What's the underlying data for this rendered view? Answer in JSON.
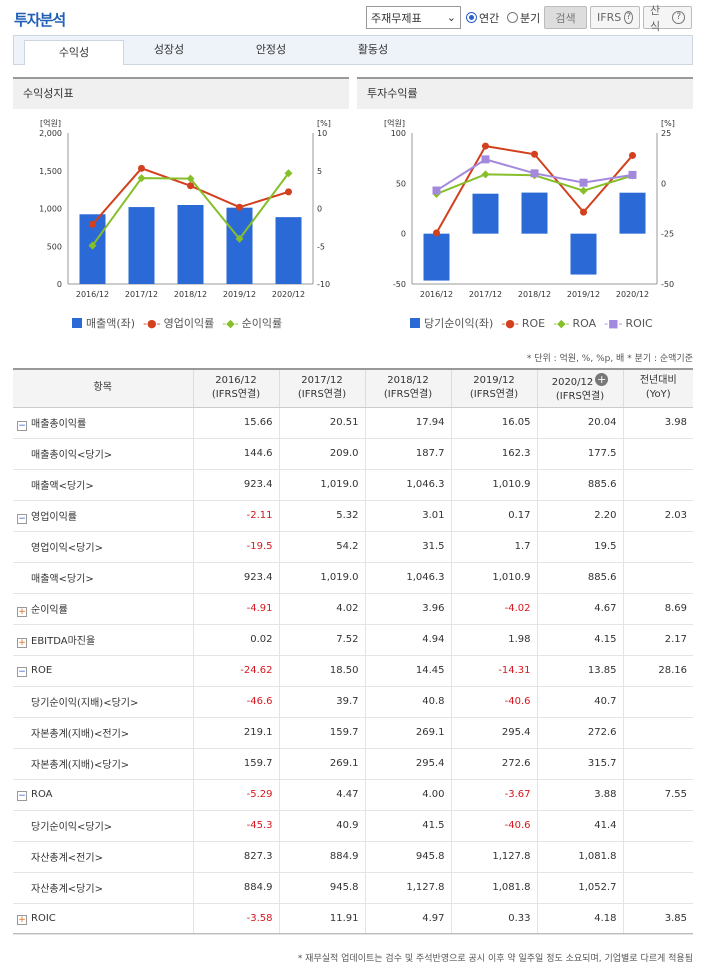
{
  "header": {
    "title": "투자분석",
    "select_value": "주재무제표",
    "radio_annual": "연간",
    "radio_quarter": "분기",
    "search_btn": "검색",
    "ifrs_btn": "IFRS",
    "formula_btn": "산식",
    "help": "?"
  },
  "tabs": [
    "수익성",
    "성장성",
    "안정성",
    "활동성"
  ],
  "panels": {
    "left": "수익성지표",
    "right": "투자수익률"
  },
  "chart_data": [
    {
      "type": "bar",
      "title": "수익성지표",
      "categories": [
        "2016/12",
        "2017/12",
        "2018/12",
        "2019/12",
        "2020/12"
      ],
      "y_left_unit": "[억원]",
      "y_right_unit": "[%]",
      "y_left_ticks": [
        "2,000",
        "1,500",
        "1,000",
        "500",
        "0"
      ],
      "y_right_ticks": [
        "10",
        "5",
        "0",
        "-5",
        "-10"
      ],
      "ylim_left": [
        0,
        2000
      ],
      "ylim_right": [
        -10,
        10
      ],
      "series": [
        {
          "name": "매출액(좌)",
          "kind": "bar",
          "axis": "left",
          "color": "#2b6ad6",
          "values": [
            923.4,
            1019.0,
            1046.3,
            1010.9,
            885.6
          ]
        },
        {
          "name": "영업이익률",
          "kind": "line",
          "axis": "right",
          "color": "#d2401e",
          "values": [
            -2.11,
            5.32,
            3.01,
            0.17,
            2.2
          ]
        },
        {
          "name": "순이익률",
          "kind": "line",
          "axis": "right",
          "color": "#86bf2a",
          "values": [
            -4.91,
            4.02,
            3.96,
            -4.02,
            4.67
          ]
        }
      ]
    },
    {
      "type": "bar",
      "title": "투자수익률",
      "categories": [
        "2016/12",
        "2017/12",
        "2018/12",
        "2019/12",
        "2020/12"
      ],
      "y_left_unit": "[억원]",
      "y_right_unit": "[%]",
      "y_left_ticks": [
        "100",
        "50",
        "0",
        "-50"
      ],
      "y_right_ticks": [
        "25",
        "0",
        "-25",
        "-50"
      ],
      "ylim_left": [
        -50,
        100
      ],
      "ylim_right": [
        -50,
        25
      ],
      "series": [
        {
          "name": "당기순이익(좌)",
          "kind": "bar",
          "axis": "left",
          "color": "#2b6ad6",
          "values": [
            -46.6,
            39.7,
            40.8,
            -40.6,
            40.7
          ]
        },
        {
          "name": "ROE",
          "kind": "line",
          "axis": "right",
          "color": "#d2401e",
          "values": [
            -24.62,
            18.5,
            14.45,
            -14.31,
            13.85
          ]
        },
        {
          "name": "ROA",
          "kind": "line",
          "axis": "right",
          "color": "#86bf2a",
          "values": [
            -5.29,
            4.47,
            4.0,
            -3.67,
            3.88
          ]
        },
        {
          "name": "ROIC",
          "kind": "line",
          "axis": "right",
          "color": "#a389dd",
          "values": [
            -3.58,
            11.91,
            4.97,
            0.33,
            4.18
          ]
        }
      ]
    }
  ],
  "unit_note": "* 단위 : 억원, %, %p, 배   * 분기 : 순액기준",
  "table": {
    "headers": [
      "항목",
      "2016/12\n(IFRS연결)",
      "2017/12\n(IFRS연결)",
      "2018/12\n(IFRS연결)",
      "2019/12\n(IFRS연결)",
      "2020/12\n(IFRS연결)",
      "전년대비\n(YoY)"
    ],
    "rows": [
      {
        "label": "매출총이익률",
        "toggle": "minus",
        "vals": [
          "15.66",
          "20.51",
          "17.94",
          "16.05",
          "20.04",
          "3.98"
        ]
      },
      {
        "label": "매출총이익<당기>",
        "sub": true,
        "vals": [
          "144.6",
          "209.0",
          "187.7",
          "162.3",
          "177.5",
          ""
        ]
      },
      {
        "label": "매출액<당기>",
        "sub": true,
        "vals": [
          "923.4",
          "1,019.0",
          "1,046.3",
          "1,010.9",
          "885.6",
          ""
        ]
      },
      {
        "label": "영업이익률",
        "toggle": "minus",
        "vals": [
          "-2.11",
          "5.32",
          "3.01",
          "0.17",
          "2.20",
          "2.03"
        ]
      },
      {
        "label": "영업이익<당기>",
        "sub": true,
        "vals": [
          "-19.5",
          "54.2",
          "31.5",
          "1.7",
          "19.5",
          ""
        ]
      },
      {
        "label": "매출액<당기>",
        "sub": true,
        "vals": [
          "923.4",
          "1,019.0",
          "1,046.3",
          "1,010.9",
          "885.6",
          ""
        ]
      },
      {
        "label": "순이익률",
        "toggle": "plus",
        "vals": [
          "-4.91",
          "4.02",
          "3.96",
          "-4.02",
          "4.67",
          "8.69"
        ]
      },
      {
        "label": "EBITDA마진율",
        "toggle": "plus",
        "vals": [
          "0.02",
          "7.52",
          "4.94",
          "1.98",
          "4.15",
          "2.17"
        ]
      },
      {
        "label": "ROE",
        "toggle": "minus",
        "vals": [
          "-24.62",
          "18.50",
          "14.45",
          "-14.31",
          "13.85",
          "28.16"
        ]
      },
      {
        "label": "당기순이익(지배)<당기>",
        "sub": true,
        "vals": [
          "-46.6",
          "39.7",
          "40.8",
          "-40.6",
          "40.7",
          ""
        ]
      },
      {
        "label": "자본총계(지배)<전기>",
        "sub": true,
        "vals": [
          "219.1",
          "159.7",
          "269.1",
          "295.4",
          "272.6",
          ""
        ]
      },
      {
        "label": "자본총계(지배)<당기>",
        "sub": true,
        "vals": [
          "159.7",
          "269.1",
          "295.4",
          "272.6",
          "315.7",
          ""
        ]
      },
      {
        "label": "ROA",
        "toggle": "minus",
        "vals": [
          "-5.29",
          "4.47",
          "4.00",
          "-3.67",
          "3.88",
          "7.55"
        ]
      },
      {
        "label": "당기순이익<당기>",
        "sub": true,
        "vals": [
          "-45.3",
          "40.9",
          "41.5",
          "-40.6",
          "41.4",
          ""
        ]
      },
      {
        "label": "자산총계<전기>",
        "sub": true,
        "vals": [
          "827.3",
          "884.9",
          "945.8",
          "1,127.8",
          "1,081.8",
          ""
        ]
      },
      {
        "label": "자산총계<당기>",
        "sub": true,
        "vals": [
          "884.9",
          "945.8",
          "1,127.8",
          "1,081.8",
          "1,052.7",
          ""
        ]
      },
      {
        "label": "ROIC",
        "toggle": "plus",
        "vals": [
          "-3.58",
          "11.91",
          "4.97",
          "0.33",
          "4.18",
          "3.85"
        ]
      }
    ]
  },
  "footnote": "* 재무실적 업데이트는 검수 및 주석반영으로 공시 이후 약 일주일 정도 소요되며, 기업별로 다르게 적용됨"
}
